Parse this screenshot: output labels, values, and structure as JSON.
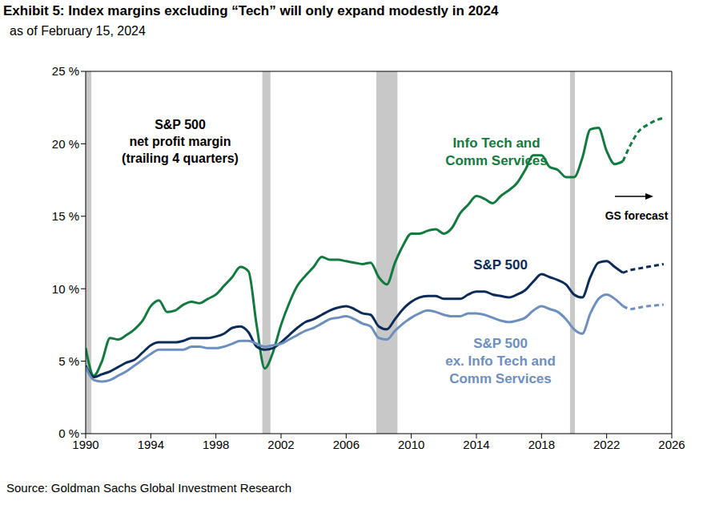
{
  "chart_data": {
    "type": "line",
    "title": "Exhibit 5: Index margins excluding “Tech” will only expand modestly in 2024",
    "subtitle": "as of February 15, 2024",
    "source": "Source: Goldman Sachs Global Investment Research",
    "annotations": [
      "S&P 500\nnet profit margin\n(trailing 4 quarters)",
      "GS forecast"
    ],
    "xlim": [
      1990,
      2026
    ],
    "xticks": [
      1990,
      1994,
      1998,
      2002,
      2006,
      2010,
      2014,
      2018,
      2022,
      2026
    ],
    "ylim": [
      0,
      25
    ],
    "yticks": [
      {
        "value": 0,
        "label": "0 %"
      },
      {
        "value": 5,
        "label": "5 %"
      },
      {
        "value": 10,
        "label": "10 %"
      },
      {
        "value": 15,
        "label": "15 %"
      },
      {
        "value": 20,
        "label": "20 %"
      },
      {
        "value": 25,
        "label": "25 %"
      }
    ],
    "grid": false,
    "recessions": [
      [
        1990.0,
        1990.35
      ],
      [
        2000.85,
        2001.35
      ],
      [
        2007.85,
        2009.15
      ],
      [
        2019.75,
        2020.05
      ]
    ],
    "series": [
      {
        "name": "Info Tech and\nComm Services",
        "color": "#127a3e",
        "line_style": "solid",
        "x": [
          1990,
          1990.5,
          1991,
          1991.5,
          1992,
          1992.5,
          1993,
          1993.5,
          1994,
          1994.5,
          1995,
          1995.5,
          1996,
          1996.5,
          1997,
          1997.5,
          1998,
          1998.5,
          1999,
          1999.5,
          2000,
          2000.5,
          2001,
          2001.5,
          2002,
          2002.5,
          2003,
          2003.5,
          2004,
          2004.5,
          2005,
          2005.5,
          2006,
          2006.5,
          2007,
          2007.5,
          2008,
          2008.5,
          2009,
          2009.5,
          2010,
          2010.5,
          2011,
          2011.5,
          2012,
          2012.5,
          2013,
          2013.5,
          2014,
          2014.5,
          2015,
          2015.5,
          2016,
          2016.5,
          2017,
          2017.5,
          2018,
          2018.5,
          2019,
          2019.5,
          2020,
          2020.5,
          2021,
          2021.5,
          2022,
          2022.5,
          2023
        ],
        "values": [
          5.9,
          4.0,
          5.0,
          6.6,
          6.5,
          6.8,
          7.2,
          7.8,
          8.8,
          9.2,
          8.4,
          8.5,
          8.9,
          9.1,
          9.0,
          9.3,
          9.6,
          10.2,
          10.8,
          11.5,
          11.2,
          7.5,
          4.5,
          5.6,
          7.5,
          9.0,
          10.2,
          10.9,
          11.5,
          12.2,
          12.0,
          12.0,
          11.9,
          11.8,
          11.7,
          11.8,
          10.8,
          10.3,
          11.8,
          13.0,
          13.8,
          13.8,
          14.0,
          14.1,
          13.8,
          14.2,
          15.2,
          15.8,
          16.4,
          16.2,
          15.9,
          16.4,
          16.8,
          17.3,
          18.2,
          19.2,
          19.2,
          18.4,
          18.2,
          17.7,
          17.7,
          19.0,
          21.0,
          21.1,
          19.5,
          18.6,
          18.8
        ]
      },
      {
        "name": "S&P 500",
        "color": "#0c2c57",
        "line_style": "solid",
        "x": [
          1990,
          1990.5,
          1991,
          1991.5,
          1992,
          1992.5,
          1993,
          1993.5,
          1994,
          1994.5,
          1995,
          1995.5,
          1996,
          1996.5,
          1997,
          1997.5,
          1998,
          1998.5,
          1999,
          1999.5,
          2000,
          2000.5,
          2001,
          2001.5,
          2002,
          2002.5,
          2003,
          2003.5,
          2004,
          2004.5,
          2005,
          2005.5,
          2006,
          2006.5,
          2007,
          2007.5,
          2008,
          2008.5,
          2009,
          2009.5,
          2010,
          2010.5,
          2011,
          2011.5,
          2012,
          2012.5,
          2013,
          2013.5,
          2014,
          2014.5,
          2015,
          2015.5,
          2016,
          2016.5,
          2017,
          2017.5,
          2018,
          2018.5,
          2019,
          2019.5,
          2020,
          2020.5,
          2021,
          2021.5,
          2022,
          2022.5,
          2023
        ],
        "values": [
          4.7,
          3.9,
          4.1,
          4.3,
          4.6,
          4.9,
          5.1,
          5.6,
          6.1,
          6.3,
          6.3,
          6.3,
          6.4,
          6.6,
          6.6,
          6.6,
          6.7,
          6.9,
          7.3,
          7.4,
          7.0,
          6.0,
          5.8,
          5.9,
          6.3,
          6.8,
          7.3,
          7.7,
          7.9,
          8.2,
          8.5,
          8.7,
          8.8,
          8.6,
          8.3,
          8.2,
          7.4,
          7.2,
          7.9,
          8.6,
          9.1,
          9.4,
          9.5,
          9.5,
          9.3,
          9.3,
          9.3,
          9.6,
          9.8,
          9.8,
          9.6,
          9.5,
          9.4,
          9.6,
          9.9,
          10.5,
          11.0,
          10.8,
          10.6,
          10.3,
          9.6,
          9.4,
          10.8,
          11.8,
          11.9,
          11.5,
          11.1
        ]
      },
      {
        "name": "S&P 500\nex. Info Tech and\nComm Services",
        "color": "#6d8fbe",
        "line_style": "solid",
        "x": [
          1990,
          1990.5,
          1991,
          1991.5,
          1992,
          1992.5,
          1993,
          1993.5,
          1994,
          1994.5,
          1995,
          1995.5,
          1996,
          1996.5,
          1997,
          1997.5,
          1998,
          1998.5,
          1999,
          1999.5,
          2000,
          2000.5,
          2001,
          2001.5,
          2002,
          2002.5,
          2003,
          2003.5,
          2004,
          2004.5,
          2005,
          2005.5,
          2006,
          2006.5,
          2007,
          2007.5,
          2008,
          2008.5,
          2009,
          2009.5,
          2010,
          2010.5,
          2011,
          2011.5,
          2012,
          2012.5,
          2013,
          2013.5,
          2014,
          2014.5,
          2015,
          2015.5,
          2016,
          2016.5,
          2017,
          2017.5,
          2018,
          2018.5,
          2019,
          2019.5,
          2020,
          2020.5,
          2021,
          2021.5,
          2022,
          2022.5,
          2023
        ],
        "values": [
          4.6,
          3.7,
          3.6,
          3.7,
          4.0,
          4.3,
          4.7,
          5.1,
          5.5,
          5.8,
          5.8,
          5.8,
          5.8,
          6.0,
          6.0,
          5.9,
          5.9,
          6.0,
          6.2,
          6.4,
          6.4,
          6.2,
          6.0,
          6.1,
          6.2,
          6.5,
          6.8,
          7.1,
          7.3,
          7.6,
          7.9,
          8.0,
          8.1,
          7.9,
          7.6,
          7.4,
          6.6,
          6.5,
          7.1,
          7.6,
          8.0,
          8.3,
          8.5,
          8.4,
          8.2,
          8.1,
          8.1,
          8.3,
          8.3,
          8.2,
          8.0,
          7.8,
          7.7,
          7.8,
          8.0,
          8.5,
          8.8,
          8.6,
          8.4,
          7.9,
          7.2,
          6.9,
          8.3,
          9.3,
          9.6,
          9.3,
          8.8
        ]
      },
      {
        "name": "Info Tech and\nComm Services",
        "color": "#127a3e",
        "line_style": "dashed",
        "x": [
          2023,
          2023.5,
          2024,
          2024.5,
          2025,
          2025.5
        ],
        "values": [
          18.8,
          20.0,
          20.9,
          21.3,
          21.6,
          21.8
        ]
      },
      {
        "name": "S&P 500",
        "color": "#0c2c57",
        "line_style": "dashed",
        "x": [
          2023,
          2023.5,
          2024,
          2024.5,
          2025,
          2025.5
        ],
        "values": [
          11.1,
          11.3,
          11.4,
          11.5,
          11.6,
          11.7
        ]
      },
      {
        "name": "S&P 500\nex. Info Tech and\nComm Services",
        "color": "#6d8fbe",
        "line_style": "dashed",
        "x": [
          2023,
          2023.5,
          2024,
          2024.5,
          2025,
          2025.5
        ],
        "values": [
          8.8,
          8.6,
          8.7,
          8.8,
          8.85,
          8.9
        ]
      }
    ]
  }
}
